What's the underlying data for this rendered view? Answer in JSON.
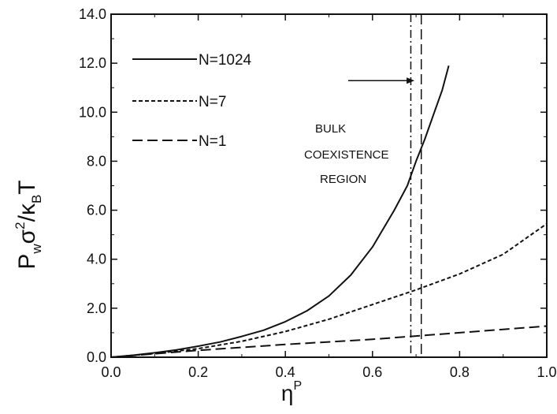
{
  "chart_data": {
    "type": "line",
    "xlim": [
      0.0,
      1.0
    ],
    "ylim": [
      0.0,
      14.0
    ],
    "x_ticks": [
      "0.0",
      "0.2",
      "0.4",
      "0.6",
      "0.8",
      "1.0"
    ],
    "y_ticks": [
      "0.0",
      "2.0",
      "4.0",
      "6.0",
      "8.0",
      "10.0",
      "12.0",
      "14.0"
    ],
    "xlabel": {
      "base": "η",
      "sup": "P"
    },
    "ylabel": {
      "p": "P",
      "w": "w",
      "sigma": "σ",
      "two": "2",
      "slash": "/",
      "kappa": "κ",
      "b": "B",
      "t": "T"
    },
    "grid": false,
    "legend_position": "top-left",
    "series": [
      {
        "name": "N=1024",
        "style": "solid",
        "x": [
          0.0,
          0.05,
          0.1,
          0.15,
          0.2,
          0.25,
          0.3,
          0.35,
          0.4,
          0.45,
          0.5,
          0.55,
          0.6,
          0.65,
          0.68,
          0.7,
          0.72,
          0.74,
          0.76,
          0.775
        ],
        "y": [
          0.0,
          0.08,
          0.18,
          0.3,
          0.45,
          0.62,
          0.85,
          1.1,
          1.45,
          1.9,
          2.5,
          3.35,
          4.5,
          6.0,
          7.0,
          8.0,
          8.9,
          9.9,
          10.9,
          11.9
        ]
      },
      {
        "name": "N=7",
        "style": "short-dash",
        "x": [
          0.0,
          0.1,
          0.2,
          0.3,
          0.4,
          0.5,
          0.6,
          0.7,
          0.8,
          0.9,
          1.0
        ],
        "y": [
          0.0,
          0.15,
          0.35,
          0.65,
          1.05,
          1.55,
          2.15,
          2.75,
          3.4,
          4.2,
          5.45
        ]
      },
      {
        "name": "N=1",
        "style": "long-dash",
        "x": [
          0.0,
          0.2,
          0.4,
          0.6,
          0.8,
          1.0
        ],
        "y": [
          0.0,
          0.28,
          0.52,
          0.73,
          1.0,
          1.27
        ]
      }
    ],
    "vlines": [
      {
        "x": 0.688,
        "style": "dash-dot"
      },
      {
        "x": 0.712,
        "style": "long-dash"
      }
    ],
    "annotation": {
      "lines": [
        "BULK",
        "COEXISTENCE",
        "REGION"
      ],
      "arrow_to_x": 0.7,
      "arrow_y": 11.0
    }
  }
}
